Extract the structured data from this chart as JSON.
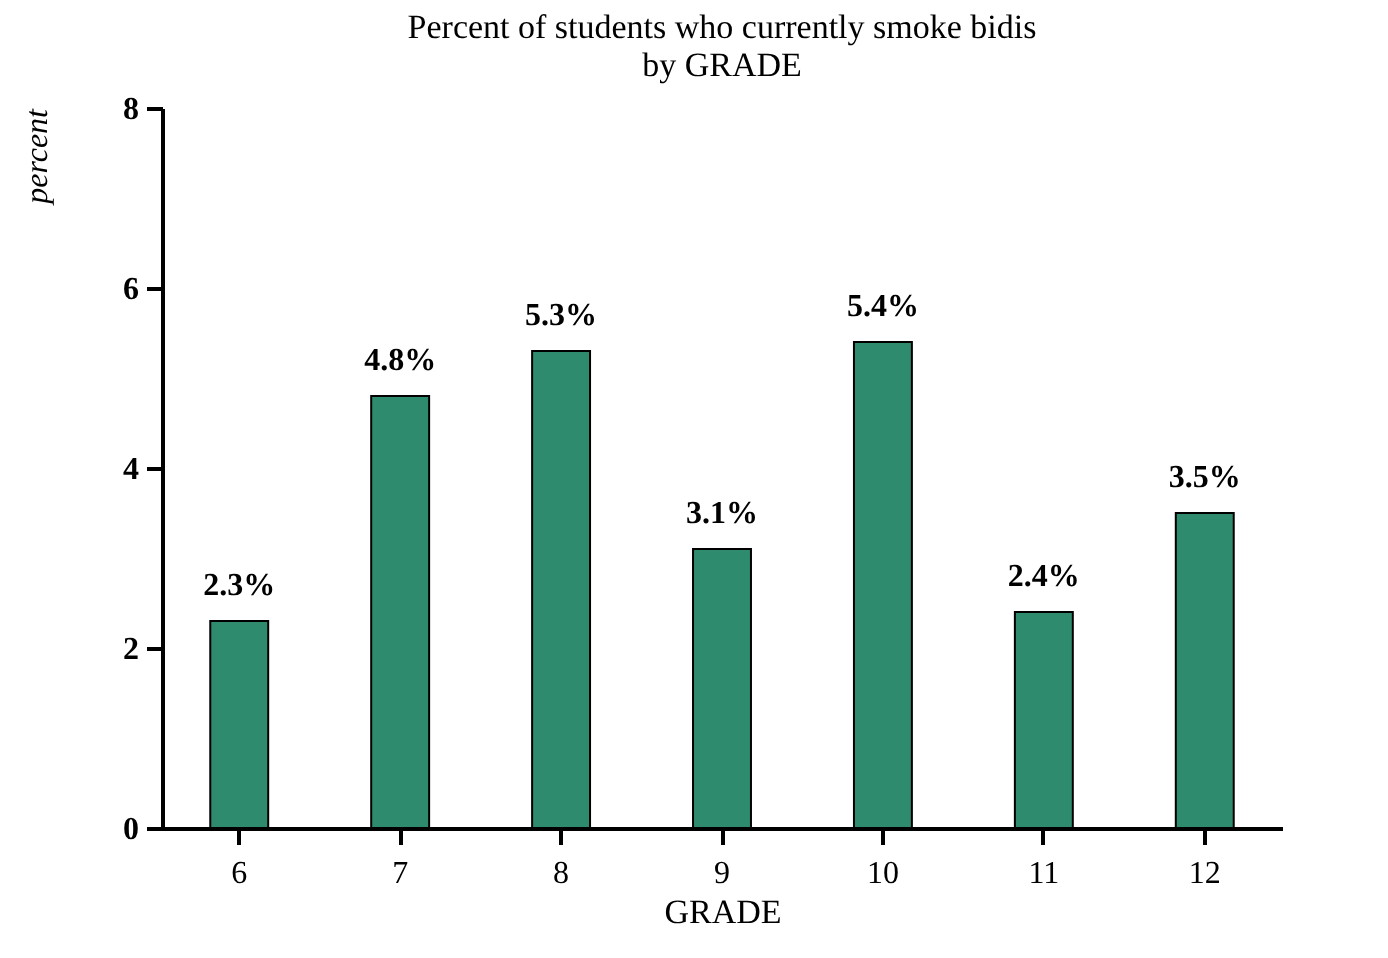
{
  "chart_data": {
    "type": "bar",
    "title": "Percent of students who currently smoke bidis\nby GRADE",
    "xlabel": "GRADE",
    "ylabel": "percent",
    "categories": [
      "6",
      "7",
      "8",
      "9",
      "10",
      "11",
      "12"
    ],
    "values": [
      2.3,
      4.8,
      5.3,
      3.1,
      5.4,
      2.4,
      3.5
    ],
    "value_labels": [
      "2.3%",
      "4.8%",
      "5.3%",
      "3.1%",
      "5.4%",
      "2.4%",
      "3.5%"
    ],
    "color": "#2e8b6e",
    "ylim": [
      0,
      8
    ],
    "yticks": [
      0,
      2,
      4,
      6,
      8
    ],
    "grid": false
  }
}
